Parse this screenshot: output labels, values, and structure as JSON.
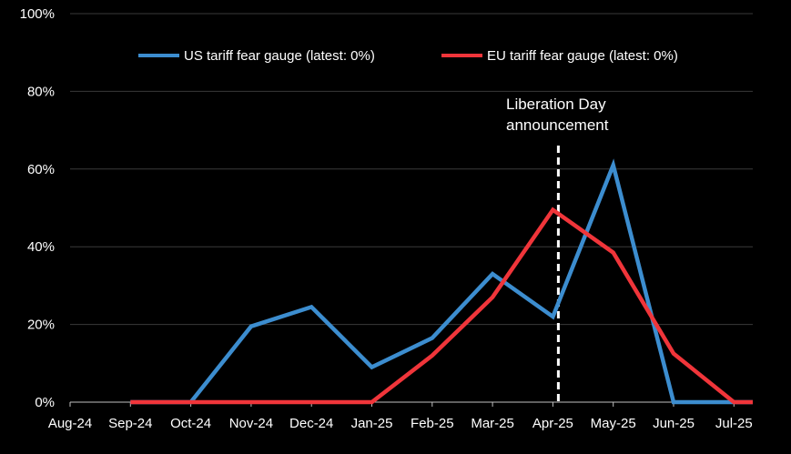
{
  "chart_data": {
    "type": "line",
    "title": "",
    "xlabel": "",
    "ylabel": "",
    "x": [
      "Aug-24",
      "Sep-24",
      "Oct-24",
      "Nov-24",
      "Dec-24",
      "Jan-25",
      "Feb-25",
      "Mar-25",
      "Apr-25",
      "May-25",
      "Jun-25",
      "Jul-25"
    ],
    "ylim": [
      0,
      100
    ],
    "y_ticks": [
      "0%",
      "20%",
      "40%",
      "60%",
      "80%",
      "100%"
    ],
    "grid": "horizontal",
    "legend_position": "top",
    "series": [
      {
        "name": "US tariff fear gauge (latest: 0%)",
        "color": "#3c8dcf",
        "points": [
          {
            "x": "Sep-24",
            "y": 0
          },
          {
            "x": "Oct-24",
            "y": 0
          },
          {
            "x": "Nov-24",
            "y": 19.5
          },
          {
            "x": "Dec-24",
            "y": 24.5
          },
          {
            "x": "Jan-25",
            "y": 9
          },
          {
            "x": "Feb-25",
            "y": 16.5
          },
          {
            "x": "Mar-25",
            "y": 33
          },
          {
            "x": "Apr-25",
            "y": 22
          },
          {
            "x": "May-25",
            "y": 61
          },
          {
            "x": "Jun-25",
            "y": 0
          },
          {
            "x": "Jul-25",
            "y": 0
          },
          {
            "x": "Jul-25+",
            "y": 0
          }
        ]
      },
      {
        "name": "EU tariff fear gauge (latest: 0%)",
        "color": "#f0353a",
        "points": [
          {
            "x": "Sep-24",
            "y": 0
          },
          {
            "x": "Oct-24",
            "y": 0
          },
          {
            "x": "Nov-24",
            "y": 0
          },
          {
            "x": "Dec-24",
            "y": 0
          },
          {
            "x": "Jan-25",
            "y": 0
          },
          {
            "x": "Feb-25",
            "y": 12
          },
          {
            "x": "Mar-25",
            "y": 27
          },
          {
            "x": "Apr-25",
            "y": 49.5
          },
          {
            "x": "May-25",
            "y": 38.5
          },
          {
            "x": "Jun-25",
            "y": 12.5
          },
          {
            "x": "Jul-25",
            "y": 0
          },
          {
            "x": "Jul-25+",
            "y": 0
          }
        ]
      }
    ],
    "annotation": {
      "line1": "Liberation Day",
      "line2": "announcement",
      "x": "Apr-25",
      "style": "dashed-vertical-line"
    }
  },
  "colors": {
    "background": "#000000",
    "text": "#ffffff",
    "gridline": "#3a3a3a",
    "axis": "#bfbfbf"
  }
}
